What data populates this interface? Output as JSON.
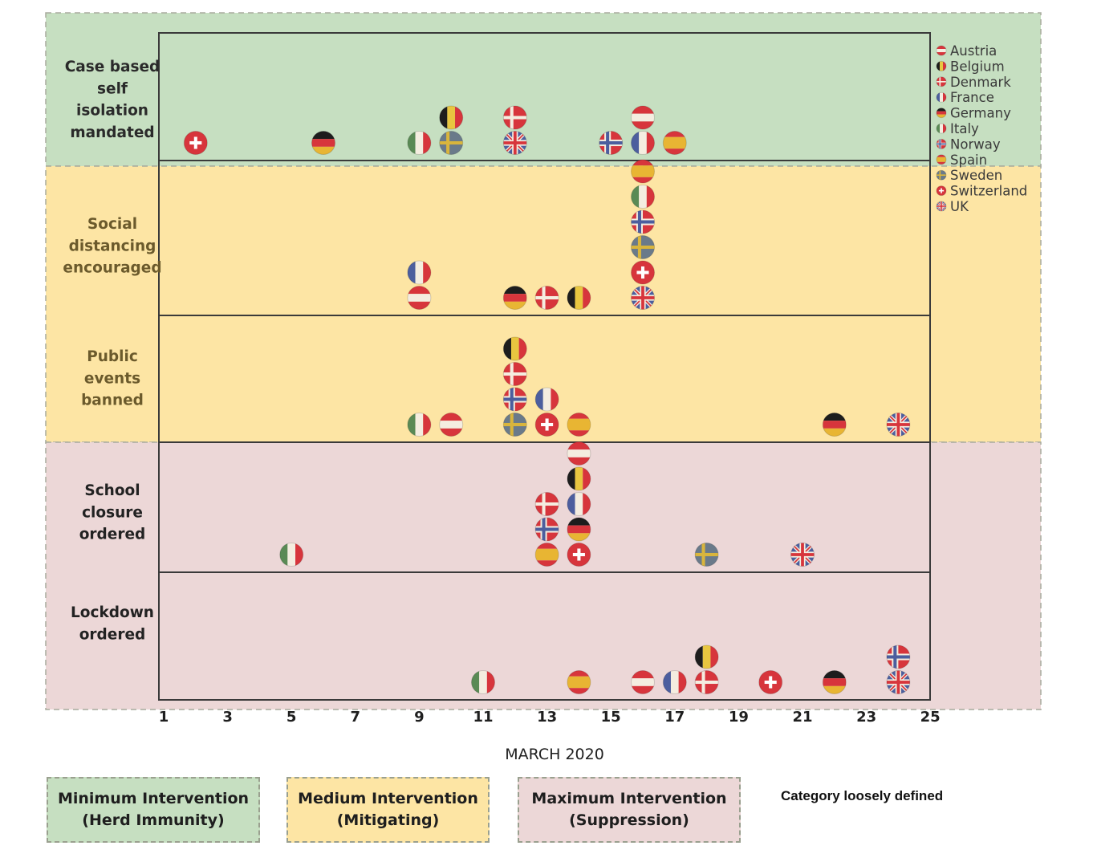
{
  "chart_data": {
    "type": "scatter",
    "xlabel": "MARCH 2020",
    "xlim": [
      1,
      25
    ],
    "xticks": [
      1,
      3,
      5,
      7,
      9,
      11,
      13,
      15,
      17,
      19,
      21,
      23,
      25
    ],
    "rows": [
      {
        "label": [
          "Case based",
          "self",
          "isolation",
          "mandated"
        ],
        "band": "minimum"
      },
      {
        "label": [
          "Social",
          "distancing",
          "encouraged"
        ],
        "band": "medium"
      },
      {
        "label": [
          "Public",
          "events",
          "banned"
        ],
        "band": "medium"
      },
      {
        "label": [
          "School",
          "closure",
          "ordered"
        ],
        "band": "maximum"
      },
      {
        "label": [
          "Lockdown",
          "ordered"
        ],
        "band": "maximum"
      }
    ],
    "legend": [
      "Austria",
      "Belgium",
      "Denmark",
      "France",
      "Germany",
      "Italy",
      "Norway",
      "Spain",
      "Sweden",
      "Switzerland",
      "UK"
    ],
    "points": [
      {
        "row": 0,
        "x": 2,
        "country": "Switzerland"
      },
      {
        "row": 0,
        "x": 6,
        "country": "Germany"
      },
      {
        "row": 0,
        "x": 9,
        "country": "Italy"
      },
      {
        "row": 0,
        "x": 10,
        "country": "Belgium"
      },
      {
        "row": 0,
        "x": 10,
        "country": "Sweden"
      },
      {
        "row": 0,
        "x": 12,
        "country": "Denmark"
      },
      {
        "row": 0,
        "x": 12,
        "country": "UK"
      },
      {
        "row": 0,
        "x": 15,
        "country": "Norway"
      },
      {
        "row": 0,
        "x": 16,
        "country": "Austria"
      },
      {
        "row": 0,
        "x": 16,
        "country": "France"
      },
      {
        "row": 0,
        "x": 17,
        "country": "Spain"
      },
      {
        "row": 1,
        "x": 9,
        "country": "France"
      },
      {
        "row": 1,
        "x": 9,
        "country": "Austria"
      },
      {
        "row": 1,
        "x": 12,
        "country": "Germany"
      },
      {
        "row": 1,
        "x": 13,
        "country": "Denmark"
      },
      {
        "row": 1,
        "x": 14,
        "country": "Belgium"
      },
      {
        "row": 1,
        "x": 16,
        "country": "Spain"
      },
      {
        "row": 1,
        "x": 16,
        "country": "Italy"
      },
      {
        "row": 1,
        "x": 16,
        "country": "Norway"
      },
      {
        "row": 1,
        "x": 16,
        "country": "Sweden"
      },
      {
        "row": 1,
        "x": 16,
        "country": "Switzerland"
      },
      {
        "row": 1,
        "x": 16,
        "country": "UK"
      },
      {
        "row": 2,
        "x": 9,
        "country": "Italy"
      },
      {
        "row": 2,
        "x": 10,
        "country": "Austria"
      },
      {
        "row": 2,
        "x": 12,
        "country": "Belgium"
      },
      {
        "row": 2,
        "x": 12,
        "country": "Denmark"
      },
      {
        "row": 2,
        "x": 12,
        "country": "Norway"
      },
      {
        "row": 2,
        "x": 12,
        "country": "Sweden"
      },
      {
        "row": 2,
        "x": 13,
        "country": "France"
      },
      {
        "row": 2,
        "x": 13,
        "country": "Switzerland"
      },
      {
        "row": 2,
        "x": 14,
        "country": "Spain"
      },
      {
        "row": 2,
        "x": 22,
        "country": "Germany"
      },
      {
        "row": 2,
        "x": 24,
        "country": "UK"
      },
      {
        "row": 3,
        "x": 5,
        "country": "Italy"
      },
      {
        "row": 3,
        "x": 13,
        "country": "Denmark"
      },
      {
        "row": 3,
        "x": 13,
        "country": "Norway"
      },
      {
        "row": 3,
        "x": 13,
        "country": "Spain"
      },
      {
        "row": 3,
        "x": 14,
        "country": "Austria"
      },
      {
        "row": 3,
        "x": 14,
        "country": "Belgium"
      },
      {
        "row": 3,
        "x": 14,
        "country": "France"
      },
      {
        "row": 3,
        "x": 14,
        "country": "Germany"
      },
      {
        "row": 3,
        "x": 14,
        "country": "Switzerland"
      },
      {
        "row": 3,
        "x": 18,
        "country": "Sweden"
      },
      {
        "row": 3,
        "x": 21,
        "country": "UK"
      },
      {
        "row": 4,
        "x": 11,
        "country": "Italy"
      },
      {
        "row": 4,
        "x": 14,
        "country": "Spain"
      },
      {
        "row": 4,
        "x": 16,
        "country": "Austria"
      },
      {
        "row": 4,
        "x": 17,
        "country": "France"
      },
      {
        "row": 4,
        "x": 18,
        "country": "Belgium"
      },
      {
        "row": 4,
        "x": 18,
        "country": "Denmark"
      },
      {
        "row": 4,
        "x": 20,
        "country": "Switzerland"
      },
      {
        "row": 4,
        "x": 22,
        "country": "Germany"
      },
      {
        "row": 4,
        "x": 24,
        "country": "Norway"
      },
      {
        "row": 4,
        "x": 24,
        "country": "UK"
      }
    ],
    "bands": [
      {
        "key": "minimum",
        "name": "Minimum Intervention",
        "sub": "(Herd Immunity)",
        "color": "#c6dfc1"
      },
      {
        "key": "medium",
        "name": "Medium Intervention",
        "sub": "(Mitigating)",
        "color": "#fde5a4"
      },
      {
        "key": "maximum",
        "name": "Maximum Intervention",
        "sub": "(Suppression)",
        "color": "#ecd7d7"
      }
    ],
    "note": "Category loosely defined"
  }
}
